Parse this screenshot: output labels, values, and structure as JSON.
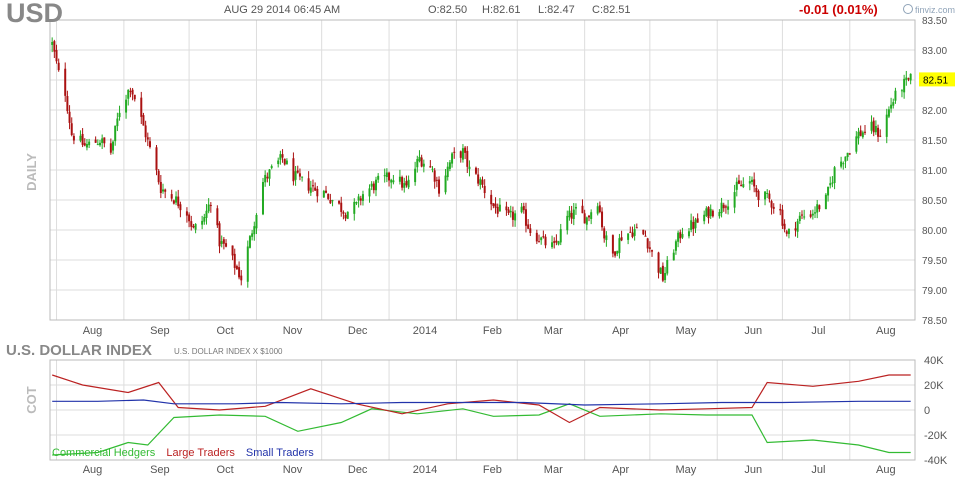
{
  "header": {
    "ticker": "USD",
    "datetime": "AUG 29 2014 06:45 AM",
    "open": "O:82.50",
    "high": "H:82.61",
    "low": "L:82.47",
    "close": "C:82.51",
    "change": "-0.01 (0.01%)",
    "brand": "finviz.com"
  },
  "colors": {
    "up": "#22aa22",
    "down": "#aa1111",
    "grid": "#dddddd",
    "last_price_bg": "#ffff00",
    "commercial": "#33bb33",
    "large": "#bb2222",
    "small": "#2233aa"
  },
  "chart_data": [
    {
      "type": "candlestick",
      "ylabel": "DAILY",
      "ylim": [
        78.5,
        83.5
      ],
      "yticks": [
        "83.50",
        "83.00",
        "82.50",
        "82.00",
        "81.50",
        "81.00",
        "80.50",
        "80.00",
        "79.50",
        "79.00",
        "78.50"
      ],
      "last_price": "82.51",
      "months": [
        "Aug",
        "Sep",
        "Oct",
        "Nov",
        "Dec",
        "2014",
        "Feb",
        "Mar",
        "Apr",
        "May",
        "Jun",
        "Jul",
        "Aug"
      ],
      "keypoints": [
        [
          "2013-07-30",
          83.1
        ],
        [
          "2013-08-02",
          82.6
        ],
        [
          "2013-08-05",
          82.3
        ],
        [
          "2013-08-08",
          81.6
        ],
        [
          "2013-08-14",
          81.4
        ],
        [
          "2013-08-21",
          81.5
        ],
        [
          "2013-08-26",
          81.3
        ],
        [
          "2013-08-30",
          82.0
        ],
        [
          "2013-09-04",
          82.4
        ],
        [
          "2013-09-06",
          82.2
        ],
        [
          "2013-09-11",
          81.6
        ],
        [
          "2013-09-18",
          80.7
        ],
        [
          "2013-09-25",
          80.5
        ],
        [
          "2013-09-30",
          80.3
        ],
        [
          "2013-10-03",
          80.0
        ],
        [
          "2013-10-08",
          80.2
        ],
        [
          "2013-10-11",
          80.5
        ],
        [
          "2013-10-15",
          79.8
        ],
        [
          "2013-10-18",
          79.7
        ],
        [
          "2013-10-25",
          79.2
        ],
        [
          "2013-10-30",
          80.0
        ],
        [
          "2013-11-04",
          80.8
        ],
        [
          "2013-11-08",
          81.0
        ],
        [
          "2013-11-13",
          81.2
        ],
        [
          "2013-11-18",
          80.9
        ],
        [
          "2013-11-22",
          80.8
        ],
        [
          "2013-11-27",
          80.7
        ],
        [
          "2013-12-03",
          80.6
        ],
        [
          "2013-12-06",
          80.5
        ],
        [
          "2013-12-12",
          80.3
        ],
        [
          "2013-12-17",
          80.4
        ],
        [
          "2013-12-20",
          80.6
        ],
        [
          "2013-12-27",
          80.8
        ],
        [
          "2014-01-03",
          80.9
        ],
        [
          "2014-01-09",
          80.7
        ],
        [
          "2014-01-15",
          81.2
        ],
        [
          "2014-01-21",
          81.0
        ],
        [
          "2014-01-24",
          80.7
        ],
        [
          "2014-01-30",
          81.2
        ],
        [
          "2014-02-04",
          81.3
        ],
        [
          "2014-02-07",
          81.0
        ],
        [
          "2014-02-12",
          80.8
        ],
        [
          "2014-02-18",
          80.4
        ],
        [
          "2014-02-25",
          80.2
        ],
        [
          "2014-03-03",
          80.3
        ],
        [
          "2014-03-07",
          80.0
        ],
        [
          "2014-03-13",
          79.8
        ],
        [
          "2014-03-18",
          79.7
        ],
        [
          "2014-03-24",
          80.2
        ],
        [
          "2014-03-28",
          80.3
        ],
        [
          "2014-04-02",
          80.2
        ],
        [
          "2014-04-07",
          80.5
        ],
        [
          "2014-04-10",
          79.9
        ],
        [
          "2014-04-14",
          79.6
        ],
        [
          "2014-04-18",
          79.9
        ],
        [
          "2014-04-24",
          80.0
        ],
        [
          "2014-04-29",
          79.9
        ],
        [
          "2014-05-02",
          79.6
        ],
        [
          "2014-05-07",
          79.2
        ],
        [
          "2014-05-12",
          79.7
        ],
        [
          "2014-05-16",
          80.0
        ],
        [
          "2014-05-22",
          80.1
        ],
        [
          "2014-05-28",
          80.3
        ],
        [
          "2014-06-03",
          80.4
        ],
        [
          "2014-06-06",
          80.5
        ],
        [
          "2014-06-10",
          80.7
        ],
        [
          "2014-06-16",
          80.8
        ],
        [
          "2014-06-20",
          80.6
        ],
        [
          "2014-06-25",
          80.5
        ],
        [
          "2014-06-30",
          80.3
        ],
        [
          "2014-07-03",
          79.9
        ],
        [
          "2014-07-09",
          80.2
        ],
        [
          "2014-07-15",
          80.3
        ],
        [
          "2014-07-21",
          80.5
        ],
        [
          "2014-07-25",
          81.0
        ],
        [
          "2014-07-31",
          81.3
        ],
        [
          "2014-08-05",
          81.6
        ],
        [
          "2014-08-11",
          81.7
        ],
        [
          "2014-08-15",
          81.6
        ],
        [
          "2014-08-20",
          82.1
        ],
        [
          "2014-08-25",
          82.4
        ],
        [
          "2014-08-29",
          82.5
        ]
      ]
    },
    {
      "type": "line",
      "ylabel": "COT",
      "subtitle": "U.S. DOLLAR INDEX X $1000",
      "title": "U.S. DOLLAR INDEX",
      "ylim": [
        -40,
        40
      ],
      "yticks": [
        "40K",
        "20K",
        "0",
        "-20K",
        "-40K"
      ],
      "months": [
        "Aug",
        "Sep",
        "Oct",
        "Nov",
        "Dec",
        "2014",
        "Feb",
        "Mar",
        "Apr",
        "May",
        "Jun",
        "Jul",
        "Aug"
      ],
      "series": [
        {
          "name": "Commercial Hedgers",
          "points": [
            [
              "2013-07-30",
              -36
            ],
            [
              "2013-08-20",
              -34
            ],
            [
              "2013-09-03",
              -26
            ],
            [
              "2013-09-12",
              -28
            ],
            [
              "2013-09-24",
              -6
            ],
            [
              "2013-10-15",
              -4
            ],
            [
              "2013-11-05",
              -5
            ],
            [
              "2013-11-20",
              -17
            ],
            [
              "2013-12-10",
              -10
            ],
            [
              "2013-12-24",
              1
            ],
            [
              "2014-01-14",
              -3
            ],
            [
              "2014-02-04",
              1
            ],
            [
              "2014-02-18",
              -5
            ],
            [
              "2014-03-11",
              -4
            ],
            [
              "2014-03-25",
              5
            ],
            [
              "2014-04-08",
              -5
            ],
            [
              "2014-05-06",
              -3
            ],
            [
              "2014-05-27",
              -4
            ],
            [
              "2014-06-17",
              -4
            ],
            [
              "2014-06-24",
              -26
            ],
            [
              "2014-07-15",
              -24
            ],
            [
              "2014-08-05",
              -28
            ],
            [
              "2014-08-19",
              -34
            ],
            [
              "2014-08-29",
              -34
            ]
          ]
        },
        {
          "name": "Large Traders",
          "points": [
            [
              "2013-07-30",
              28
            ],
            [
              "2013-08-13",
              20
            ],
            [
              "2013-09-03",
              14
            ],
            [
              "2013-09-17",
              22
            ],
            [
              "2013-09-26",
              2
            ],
            [
              "2013-10-15",
              0
            ],
            [
              "2013-11-05",
              3
            ],
            [
              "2013-11-26",
              17
            ],
            [
              "2013-12-17",
              5
            ],
            [
              "2014-01-07",
              -3
            ],
            [
              "2014-01-28",
              5
            ],
            [
              "2014-02-18",
              8
            ],
            [
              "2014-03-11",
              4
            ],
            [
              "2014-03-25",
              -10
            ],
            [
              "2014-04-08",
              2
            ],
            [
              "2014-05-06",
              0
            ],
            [
              "2014-05-27",
              1
            ],
            [
              "2014-06-17",
              2
            ],
            [
              "2014-06-24",
              22
            ],
            [
              "2014-07-15",
              19
            ],
            [
              "2014-08-05",
              23
            ],
            [
              "2014-08-19",
              28
            ],
            [
              "2014-08-29",
              28
            ]
          ]
        },
        {
          "name": "Small Traders",
          "points": [
            [
              "2013-07-30",
              7
            ],
            [
              "2013-08-20",
              7
            ],
            [
              "2013-09-10",
              8
            ],
            [
              "2013-09-24",
              5
            ],
            [
              "2013-10-22",
              5
            ],
            [
              "2013-11-12",
              6
            ],
            [
              "2013-12-10",
              5
            ],
            [
              "2014-01-07",
              6
            ],
            [
              "2014-02-04",
              6
            ],
            [
              "2014-03-04",
              6
            ],
            [
              "2014-04-01",
              4
            ],
            [
              "2014-05-06",
              5
            ],
            [
              "2014-06-03",
              6
            ],
            [
              "2014-07-01",
              6
            ],
            [
              "2014-08-05",
              7
            ],
            [
              "2014-08-29",
              7
            ]
          ]
        }
      ]
    }
  ]
}
